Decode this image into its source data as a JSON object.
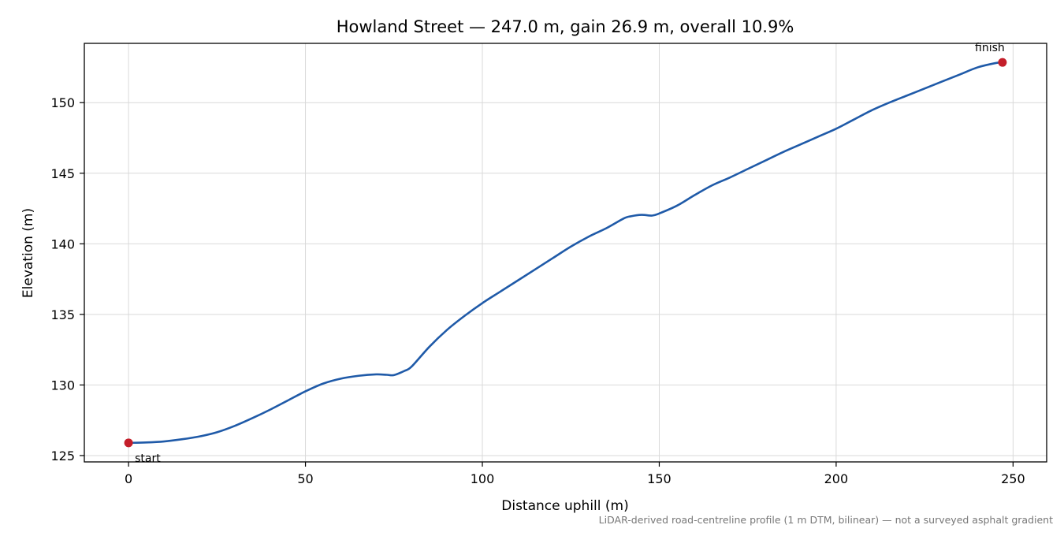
{
  "chart_data": {
    "type": "line",
    "title": "Howland Street — 247.0 m, gain 26.9 m, overall 10.9%",
    "xlabel": "Distance uphill (m)",
    "ylabel": "Elevation (m)",
    "xlim": [
      -12.5,
      259.5
    ],
    "ylim": [
      124.55,
      154.2
    ],
    "xticks": [
      0,
      50,
      100,
      150,
      200,
      250
    ],
    "yticks": [
      125,
      130,
      135,
      140,
      145,
      150
    ],
    "grid": true,
    "colors": {
      "line": "#1f5aa8",
      "marker": "#c41e2a",
      "footnote": "#777777"
    },
    "series": [
      {
        "x": [
          0,
          5,
          10,
          15,
          20,
          25,
          30,
          35,
          40,
          45,
          50,
          55,
          60,
          65,
          70,
          73,
          75,
          78,
          80,
          85,
          90,
          95,
          100,
          105,
          110,
          115,
          120,
          125,
          130,
          135,
          140,
          142,
          145,
          148,
          150,
          155,
          160,
          165,
          170,
          175,
          180,
          185,
          190,
          195,
          200,
          205,
          210,
          215,
          220,
          225,
          230,
          235,
          240,
          245,
          247
        ],
        "y": [
          125.9,
          125.93,
          126.0,
          126.15,
          126.35,
          126.65,
          127.1,
          127.65,
          128.25,
          128.9,
          129.55,
          130.1,
          130.45,
          130.65,
          130.75,
          130.72,
          130.7,
          131.0,
          131.3,
          132.7,
          133.9,
          134.9,
          135.8,
          136.6,
          137.4,
          138.2,
          139.0,
          139.8,
          140.5,
          141.1,
          141.8,
          141.95,
          142.05,
          142.0,
          142.15,
          142.7,
          143.45,
          144.15,
          144.7,
          145.3,
          145.9,
          146.5,
          147.05,
          147.6,
          148.15,
          148.8,
          149.45,
          150.0,
          150.5,
          151.0,
          151.5,
          152.0,
          152.5,
          152.8,
          152.85
        ]
      }
    ],
    "annotations": [
      {
        "text": "start",
        "x": 0,
        "y": 125.9
      },
      {
        "text": "finish",
        "x": 247,
        "y": 152.85
      }
    ],
    "footnote": "LiDAR-derived road-centreline profile (1 m DTM, bilinear) — not a surveyed asphalt gradient"
  }
}
